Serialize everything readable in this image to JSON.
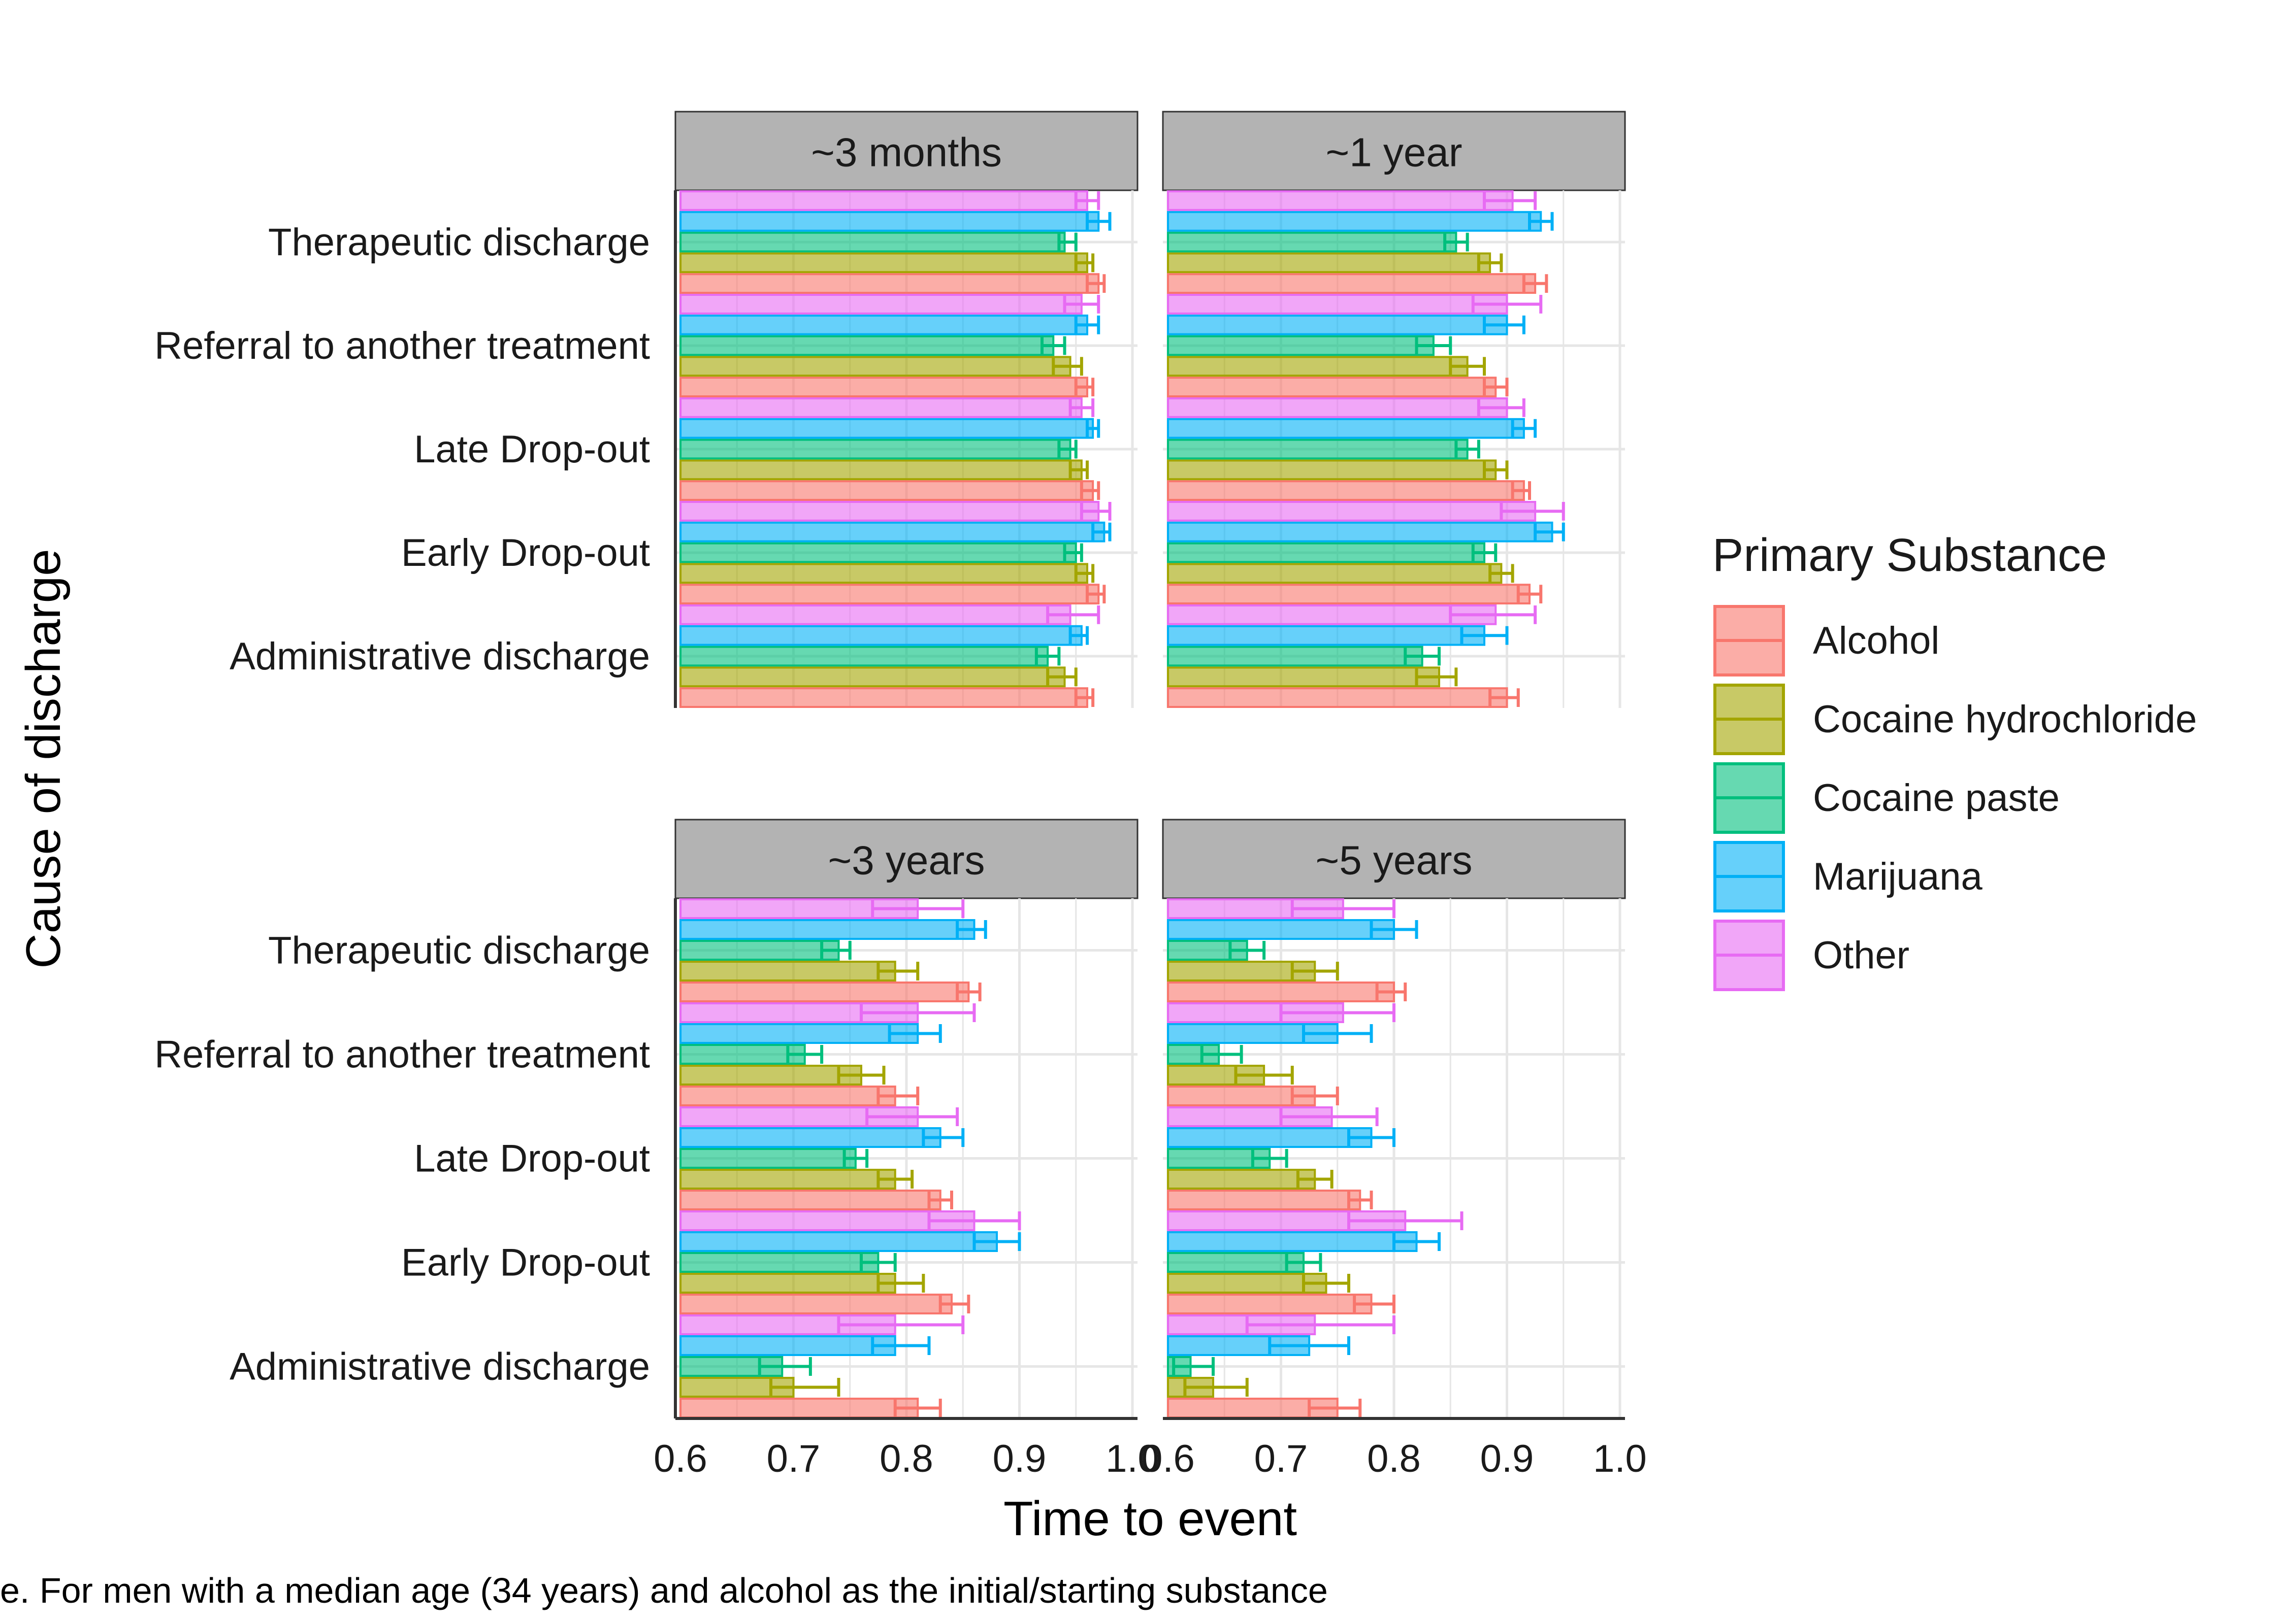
{
  "chart_data": {
    "type": "bar",
    "xlabel": "Time to event",
    "ylabel": "Cause of discharge",
    "caption": "e. For men with a median age (34 years) and alcohol as the initial/starting substance",
    "xlim": [
      0.6,
      1.0
    ],
    "xticks": [
      "0.6",
      "0.7",
      "0.8",
      "0.9",
      "1.0"
    ],
    "categories": [
      "Therapeutic discharge",
      "Referral to another treatment",
      "Late Drop-out",
      "Early Drop-out",
      "Administrative discharge"
    ],
    "legend": {
      "title": "Primary Substance",
      "position": "right",
      "items": [
        "Alcohol",
        "Cocaine hydrochloride",
        "Cocaine paste",
        "Marijuana",
        "Other"
      ]
    },
    "colors": {
      "Alcohol": "#F8766D",
      "Cocaine hydrochloride": "#A3A500",
      "Cocaine paste": "#00BF7D",
      "Marijuana": "#00B0F6",
      "Other": "#E76BF3"
    },
    "grid": true,
    "facets": [
      {
        "label": "~3 months",
        "series": [
          {
            "name": "Alcohol",
            "values": [
              0.97,
              0.96,
              0.965,
              0.97,
              0.96
            ],
            "lower": [
              0.96,
              0.95,
              0.955,
              0.96,
              0.95
            ],
            "upper": [
              0.975,
              0.965,
              0.97,
              0.975,
              0.965
            ]
          },
          {
            "name": "Cocaine hydrochloride",
            "values": [
              0.96,
              0.945,
              0.955,
              0.96,
              0.94
            ],
            "lower": [
              0.95,
              0.93,
              0.945,
              0.95,
              0.925
            ],
            "upper": [
              0.965,
              0.955,
              0.96,
              0.965,
              0.95
            ]
          },
          {
            "name": "Cocaine paste",
            "values": [
              0.94,
              0.93,
              0.945,
              0.95,
              0.925
            ],
            "lower": [
              0.935,
              0.92,
              0.935,
              0.94,
              0.915
            ],
            "upper": [
              0.95,
              0.94,
              0.95,
              0.955,
              0.935
            ]
          },
          {
            "name": "Marijuana",
            "values": [
              0.97,
              0.96,
              0.965,
              0.975,
              0.955
            ],
            "lower": [
              0.96,
              0.95,
              0.96,
              0.965,
              0.945
            ],
            "upper": [
              0.98,
              0.97,
              0.97,
              0.98,
              0.96
            ]
          },
          {
            "name": "Other",
            "values": [
              0.96,
              0.955,
              0.955,
              0.97,
              0.945
            ],
            "lower": [
              0.95,
              0.94,
              0.945,
              0.955,
              0.925
            ],
            "upper": [
              0.97,
              0.97,
              0.965,
              0.98,
              0.97
            ]
          }
        ]
      },
      {
        "label": "~1 year",
        "series": [
          {
            "name": "Alcohol",
            "values": [
              0.925,
              0.89,
              0.915,
              0.92,
              0.9
            ],
            "lower": [
              0.915,
              0.88,
              0.905,
              0.91,
              0.885
            ],
            "upper": [
              0.935,
              0.9,
              0.92,
              0.93,
              0.91
            ]
          },
          {
            "name": "Cocaine hydrochloride",
            "values": [
              0.885,
              0.865,
              0.89,
              0.895,
              0.84
            ],
            "lower": [
              0.875,
              0.85,
              0.88,
              0.885,
              0.82
            ],
            "upper": [
              0.895,
              0.88,
              0.9,
              0.905,
              0.855
            ]
          },
          {
            "name": "Cocaine paste",
            "values": [
              0.855,
              0.835,
              0.865,
              0.88,
              0.825
            ],
            "lower": [
              0.845,
              0.82,
              0.855,
              0.87,
              0.81
            ],
            "upper": [
              0.865,
              0.85,
              0.875,
              0.89,
              0.84
            ]
          },
          {
            "name": "Marijuana",
            "values": [
              0.93,
              0.9,
              0.915,
              0.94,
              0.88
            ],
            "lower": [
              0.92,
              0.88,
              0.905,
              0.925,
              0.86
            ],
            "upper": [
              0.94,
              0.915,
              0.925,
              0.95,
              0.9
            ]
          },
          {
            "name": "Other",
            "values": [
              0.905,
              0.9,
              0.9,
              0.925,
              0.89
            ],
            "lower": [
              0.88,
              0.87,
              0.875,
              0.895,
              0.85
            ],
            "upper": [
              0.925,
              0.93,
              0.915,
              0.95,
              0.925
            ]
          }
        ]
      },
      {
        "label": "~3 years",
        "series": [
          {
            "name": "Alcohol",
            "values": [
              0.855,
              0.79,
              0.83,
              0.84,
              0.81
            ],
            "lower": [
              0.845,
              0.775,
              0.82,
              0.83,
              0.79
            ],
            "upper": [
              0.865,
              0.81,
              0.84,
              0.855,
              0.83
            ]
          },
          {
            "name": "Cocaine hydrochloride",
            "values": [
              0.79,
              0.76,
              0.79,
              0.79,
              0.7
            ],
            "lower": [
              0.775,
              0.74,
              0.775,
              0.775,
              0.68
            ],
            "upper": [
              0.81,
              0.78,
              0.805,
              0.815,
              0.74
            ]
          },
          {
            "name": "Cocaine paste",
            "values": [
              0.74,
              0.71,
              0.755,
              0.775,
              0.69
            ],
            "lower": [
              0.725,
              0.695,
              0.745,
              0.76,
              0.67
            ],
            "upper": [
              0.75,
              0.725,
              0.765,
              0.79,
              0.715
            ]
          },
          {
            "name": "Marijuana",
            "values": [
              0.86,
              0.81,
              0.83,
              0.88,
              0.79
            ],
            "lower": [
              0.845,
              0.785,
              0.815,
              0.86,
              0.77
            ],
            "upper": [
              0.87,
              0.83,
              0.85,
              0.9,
              0.82
            ]
          },
          {
            "name": "Other",
            "values": [
              0.81,
              0.81,
              0.81,
              0.86,
              0.79
            ],
            "lower": [
              0.77,
              0.76,
              0.765,
              0.82,
              0.74
            ],
            "upper": [
              0.85,
              0.86,
              0.845,
              0.9,
              0.85
            ]
          }
        ]
      },
      {
        "label": "~5 years",
        "series": [
          {
            "name": "Alcohol",
            "values": [
              0.8,
              0.73,
              0.77,
              0.78,
              0.75
            ],
            "lower": [
              0.785,
              0.71,
              0.76,
              0.765,
              0.725
            ],
            "upper": [
              0.81,
              0.75,
              0.78,
              0.8,
              0.77
            ]
          },
          {
            "name": "Cocaine hydrochloride",
            "values": [
              0.73,
              0.685,
              0.73,
              0.74,
              0.64
            ],
            "lower": [
              0.71,
              0.66,
              0.715,
              0.72,
              0.615
            ],
            "upper": [
              0.75,
              0.71,
              0.745,
              0.76,
              0.67
            ]
          },
          {
            "name": "Cocaine paste",
            "values": [
              0.67,
              0.645,
              0.69,
              0.72,
              0.62
            ],
            "lower": [
              0.655,
              0.63,
              0.675,
              0.705,
              0.605
            ],
            "upper": [
              0.685,
              0.665,
              0.705,
              0.735,
              0.64
            ]
          },
          {
            "name": "Marijuana",
            "values": [
              0.8,
              0.75,
              0.78,
              0.82,
              0.725
            ],
            "lower": [
              0.78,
              0.72,
              0.76,
              0.8,
              0.69
            ],
            "upper": [
              0.82,
              0.78,
              0.8,
              0.84,
              0.76
            ]
          },
          {
            "name": "Other",
            "values": [
              0.755,
              0.755,
              0.745,
              0.81,
              0.73
            ],
            "lower": [
              0.71,
              0.7,
              0.7,
              0.76,
              0.67
            ],
            "upper": [
              0.8,
              0.8,
              0.785,
              0.86,
              0.8
            ]
          }
        ]
      }
    ]
  }
}
